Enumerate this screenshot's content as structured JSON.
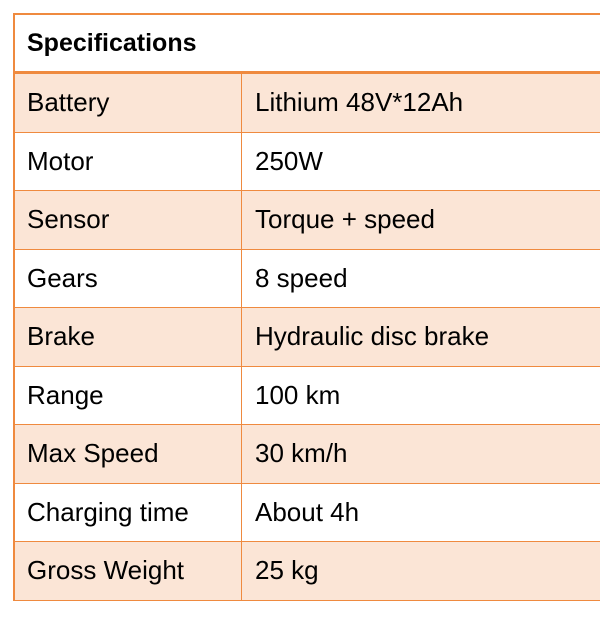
{
  "title": "Specifications",
  "colors": {
    "border": "#ef8a3f",
    "shade": "#fbe5d6"
  },
  "rows": [
    {
      "label": "Battery",
      "value": "Lithium 48V*12Ah"
    },
    {
      "label": "Motor",
      "value": "250W"
    },
    {
      "label": "Sensor",
      "value": "Torque + speed"
    },
    {
      "label": "Gears",
      "value": "8 speed"
    },
    {
      "label": "Brake",
      "value": "Hydraulic disc brake"
    },
    {
      "label": "Range",
      "value": "100 km"
    },
    {
      "label": "Max Speed",
      "value": "30 km/h"
    },
    {
      "label": "Charging time",
      "value": "About 4h"
    },
    {
      "label": "Gross Weight",
      "value": "25 kg"
    }
  ]
}
